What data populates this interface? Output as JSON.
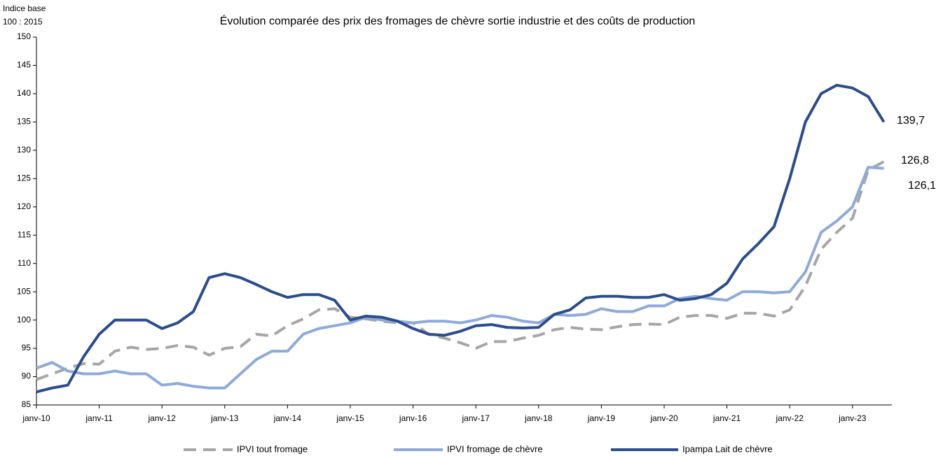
{
  "chart_data": {
    "type": "line",
    "title": "Évolution comparée des prix des fromages de chèvre sortie industrie et des coûts de production",
    "ylabel": [
      "Indice base",
      "100 : 2015"
    ],
    "categories": [
      "janv-10",
      null,
      null,
      null,
      "janv-11",
      null,
      null,
      null,
      "janv-12",
      null,
      null,
      null,
      "janv-13",
      null,
      null,
      null,
      "janv-14",
      null,
      null,
      null,
      "janv-15",
      null,
      null,
      null,
      "janv-16",
      null,
      null,
      null,
      "janv-17",
      null,
      null,
      null,
      "janv-18",
      null,
      null,
      null,
      "janv-19",
      null,
      null,
      null,
      "janv-20",
      null,
      null,
      null,
      "janv-21",
      null,
      null,
      null,
      "janv-22",
      null,
      null,
      null,
      "janv-23",
      null,
      null
    ],
    "series": [
      {
        "name": "IPVI tout fromage",
        "color": "#a6a6a6",
        "dashed": true,
        "values": [
          89.5,
          90.5,
          91.5,
          92.3,
          92.2,
          94.5,
          95.2,
          94.8,
          95,
          95.5,
          95.2,
          93.8,
          95,
          95.3,
          97.5,
          97.2,
          99,
          100.2,
          101.8,
          102,
          100.5,
          100.2,
          99.8,
          99.5,
          99.5,
          97.5,
          96.8,
          96,
          95,
          96.2,
          96.2,
          96.8,
          97.3,
          98.3,
          98.7,
          98.4,
          98.3,
          98.8,
          99.2,
          99.3,
          99.2,
          100.5,
          100.8,
          100.8,
          100.3,
          101.2,
          101.2,
          100.7,
          101.8,
          106,
          112.5,
          115.5,
          118,
          126.5,
          128
        ]
      },
      {
        "name": "IPVI fromage de chèvre",
        "color": "#8eaadb",
        "dashed": false,
        "values": [
          91.5,
          92.5,
          91,
          90.5,
          90.5,
          91,
          90.5,
          90.5,
          88.5,
          88.8,
          88.3,
          88,
          88,
          90.5,
          93,
          94.5,
          94.5,
          97.5,
          98.5,
          99,
          99.5,
          100.5,
          100,
          99.8,
          99.5,
          99.8,
          99.8,
          99.5,
          100,
          100.8,
          100.5,
          99.8,
          99.5,
          101,
          100.8,
          101,
          102,
          101.5,
          101.5,
          102.5,
          102.5,
          103.8,
          104.2,
          103.8,
          103.5,
          105,
          105,
          104.8,
          105,
          108.5,
          115.5,
          117.5,
          120,
          127,
          126.8
        ]
      },
      {
        "name": "Ipampa Lait de chèvre",
        "color": "#2a4d8f",
        "dashed": false,
        "values": [
          87.3,
          88,
          88.5,
          93.5,
          97.5,
          100,
          100,
          100,
          98.5,
          99.5,
          101.5,
          107.5,
          108.2,
          107.5,
          106.3,
          105,
          104,
          104.5,
          104.5,
          103.5,
          100,
          100.7,
          100.5,
          99.8,
          98.5,
          97.5,
          97.3,
          98,
          99,
          99.2,
          98.7,
          98.6,
          98.7,
          101,
          101.8,
          103.9,
          104.2,
          104.2,
          104,
          104,
          104.5,
          103.5,
          103.8,
          104.5,
          106.5,
          110.8,
          113.5,
          116.5,
          125,
          135,
          140,
          141.5,
          141,
          139.5,
          135
        ]
      }
    ],
    "ylim": [
      85,
      150
    ],
    "yticks": [
      85,
      90,
      95,
      100,
      105,
      110,
      115,
      120,
      125,
      130,
      135,
      140,
      145,
      150
    ],
    "annotations": [
      "139,7",
      "126,8",
      "126,1"
    ],
    "legend": "bottom"
  }
}
